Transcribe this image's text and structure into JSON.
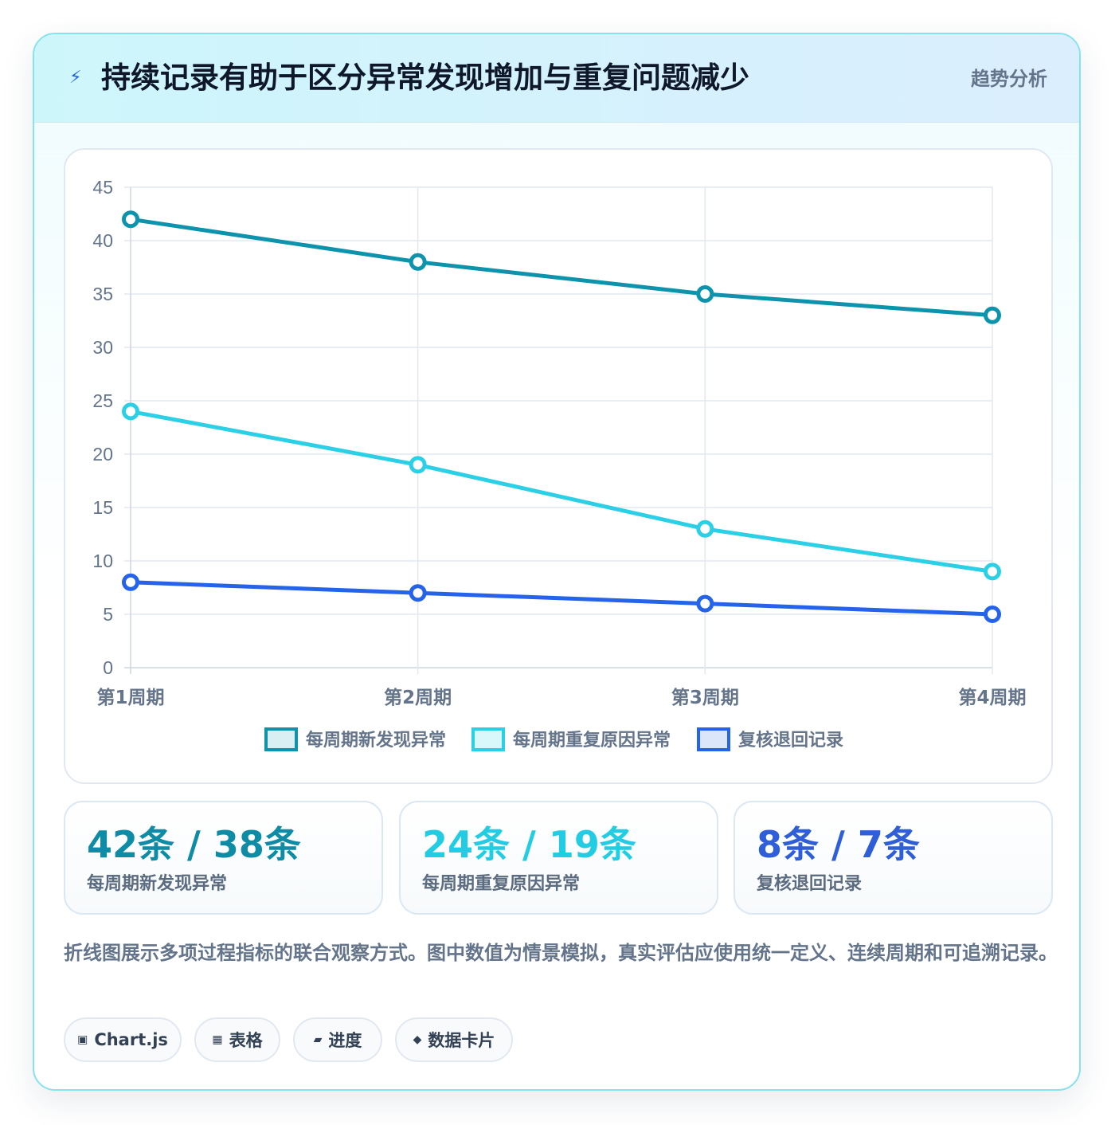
{
  "header": {
    "icon": "lightning-icon",
    "title": "持续记录有助于区分异常发现增加与重复问题减少",
    "tag": "趋势分析"
  },
  "chart_data": {
    "type": "line",
    "title": "",
    "xlabel": "",
    "ylabel": "",
    "categories": [
      "第1周期",
      "第2周期",
      "第3周期",
      "第4周期"
    ],
    "ylim": [
      0,
      45
    ],
    "yticks": [
      "0",
      "5",
      "10",
      "15",
      "20",
      "25",
      "30",
      "35",
      "40",
      "45"
    ],
    "grid": true,
    "legend_position": "bottom",
    "series": [
      {
        "name": "每周期新发现异常",
        "values": [
          42,
          38,
          35,
          33
        ],
        "color": "#0e93ad"
      },
      {
        "name": "每周期重复原因异常",
        "values": [
          24,
          19,
          13,
          9
        ],
        "color": "#2cd0e6"
      },
      {
        "name": "复核退回记录",
        "values": [
          8,
          7,
          6,
          5
        ],
        "color": "#2563eb"
      }
    ]
  },
  "stats": [
    {
      "value": "42条 / 38条",
      "label": "每周期新发现异常",
      "color": "#0e8ba5"
    },
    {
      "value": "24条 / 19条",
      "label": "每周期重复原因异常",
      "color": "#22cde4"
    },
    {
      "value": "8条 / 7条",
      "label": "复核退回记录",
      "color": "#2f5fd8"
    }
  ],
  "description": "折线图展示多项过程指标的联合观察方式。图中数值为情景模拟，真实评估应使用统一定义、连续周期和可追溯记录。",
  "tags": [
    {
      "icon": "chart-icon",
      "glyph": "▣",
      "label": "Chart.js"
    },
    {
      "icon": "table-icon",
      "glyph": "▦",
      "label": "表格"
    },
    {
      "icon": "progress-icon",
      "glyph": "▰",
      "label": "进度"
    },
    {
      "icon": "data-card-icon",
      "glyph": "◆",
      "label": "数据卡片"
    }
  ]
}
